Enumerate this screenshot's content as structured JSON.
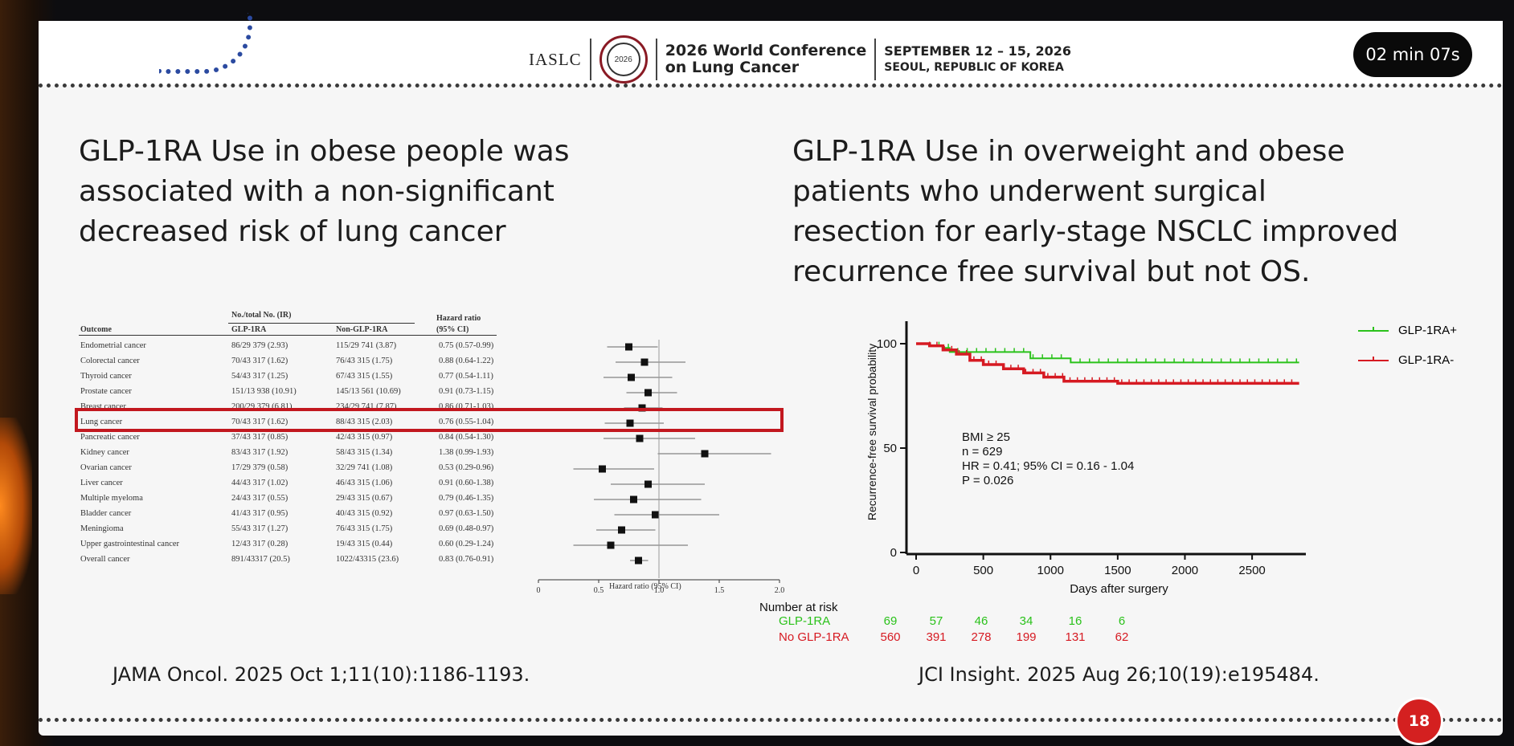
{
  "header": {
    "org": "IASLC",
    "seal_text": "2026",
    "conference_line1": "2026 World Conference",
    "conference_line2": "on Lung Cancer",
    "dates": "SEPTEMBER 12 – 15, 2026",
    "location": "SEOUL, REPUBLIC OF KOREA",
    "timer": "02 min 07s"
  },
  "left": {
    "heading_lines": [
      "GLP-1RA Use in obese people was",
      "associated with a non-significant",
      "decreased risk of lung cancer"
    ],
    "reference": "JAMA Oncol. 2025 Oct 1;11(10):1186-1193."
  },
  "right": {
    "heading_lines": [
      "GLP-1RA Use in overweight and obese",
      "patients who underwent surgical",
      "resection for early-stage NSCLC improved",
      "recurrence free survival but not OS."
    ],
    "reference": "JCI Insight. 2025 Aug 26;10(19):e195484."
  },
  "page_number": "18",
  "colors": {
    "green": "#2bc21b",
    "red": "#d61a22",
    "highlight": "#c2181f",
    "dark": "#1c1c1c"
  },
  "forest": {
    "group_header": "No./total No. (IR)",
    "col_outcome": "Outcome",
    "col_glp": "GLP-1RA",
    "col_nonglp": "Non-GLP-1RA",
    "col_hr_line1": "Hazard ratio",
    "col_hr_line2": "(95% CI)",
    "xlabel": "Hazard ratio (95% CI)",
    "xticks": [
      "0",
      "0.5",
      "1.0",
      "1.5",
      "2.0"
    ]
  },
  "chart_data": [
    {
      "type": "forest",
      "xlabel": "Hazard ratio (95% CI)",
      "xlim": [
        0,
        2.0
      ],
      "rows": [
        {
          "outcome": "Endometrial cancer",
          "glp": "86/29 379 (2.93)",
          "nonglp": "115/29 741 (3.87)",
          "hr_text": "0.75 (0.57-0.99)",
          "hr": 0.75,
          "lo": 0.57,
          "hi": 0.99
        },
        {
          "outcome": "Colorectal cancer",
          "glp": "70/43 317 (1.62)",
          "nonglp": "76/43 315 (1.75)",
          "hr_text": "0.88 (0.64-1.22)",
          "hr": 0.88,
          "lo": 0.64,
          "hi": 1.22
        },
        {
          "outcome": "Thyroid cancer",
          "glp": "54/43 317 (1.25)",
          "nonglp": "67/43 315 (1.55)",
          "hr_text": "0.77 (0.54-1.11)",
          "hr": 0.77,
          "lo": 0.54,
          "hi": 1.11
        },
        {
          "outcome": "Prostate cancer",
          "glp": "151/13 938 (10.91)",
          "nonglp": "145/13 561 (10.69)",
          "hr_text": "0.91 (0.73-1.15)",
          "hr": 0.91,
          "lo": 0.73,
          "hi": 1.15
        },
        {
          "outcome": "Breast cancer",
          "glp": "200/29 379 (6.81)",
          "nonglp": "234/29 741 (7.87)",
          "hr_text": "0.86 (0.71-1.03)",
          "hr": 0.86,
          "lo": 0.71,
          "hi": 1.03
        },
        {
          "outcome": "Lung cancer",
          "glp": "70/43 317 (1.62)",
          "nonglp": "88/43 315 (2.03)",
          "hr_text": "0.76 (0.55-1.04)",
          "hr": 0.76,
          "lo": 0.55,
          "hi": 1.04
        },
        {
          "outcome": "Pancreatic cancer",
          "glp": "37/43 317 (0.85)",
          "nonglp": "42/43 315 (0.97)",
          "hr_text": "0.84 (0.54-1.30)",
          "hr": 0.84,
          "lo": 0.54,
          "hi": 1.3
        },
        {
          "outcome": "Kidney cancer",
          "glp": "83/43 317 (1.92)",
          "nonglp": "58/43 315 (1.34)",
          "hr_text": "1.38 (0.99-1.93)",
          "hr": 1.38,
          "lo": 0.99,
          "hi": 1.93
        },
        {
          "outcome": "Ovarian cancer",
          "glp": "17/29 379 (0.58)",
          "nonglp": "32/29 741 (1.08)",
          "hr_text": "0.53 (0.29-0.96)",
          "hr": 0.53,
          "lo": 0.29,
          "hi": 0.96
        },
        {
          "outcome": "Liver cancer",
          "glp": "44/43 317 (1.02)",
          "nonglp": "46/43 315 (1.06)",
          "hr_text": "0.91 (0.60-1.38)",
          "hr": 0.91,
          "lo": 0.6,
          "hi": 1.38
        },
        {
          "outcome": "Multiple myeloma",
          "glp": "24/43 317 (0.55)",
          "nonglp": "29/43 315 (0.67)",
          "hr_text": "0.79 (0.46-1.35)",
          "hr": 0.79,
          "lo": 0.46,
          "hi": 1.35
        },
        {
          "outcome": "Bladder cancer",
          "glp": "41/43 317 (0.95)",
          "nonglp": "40/43 315 (0.92)",
          "hr_text": "0.97 (0.63-1.50)",
          "hr": 0.97,
          "lo": 0.63,
          "hi": 1.5
        },
        {
          "outcome": "Meningioma",
          "glp": "55/43 317 (1.27)",
          "nonglp": "76/43 315 (1.75)",
          "hr_text": "0.69 (0.48-0.97)",
          "hr": 0.69,
          "lo": 0.48,
          "hi": 0.97
        },
        {
          "outcome": "Upper gastrointestinal cancer",
          "glp": "12/43 317 (0.28)",
          "nonglp": "19/43 315 (0.44)",
          "hr_text": "0.60 (0.29-1.24)",
          "hr": 0.6,
          "lo": 0.29,
          "hi": 1.24
        },
        {
          "outcome": "Overall cancer",
          "glp": "891/43317 (20.5)",
          "nonglp": "1022/43315 (23.6)",
          "hr_text": "0.83 (0.76-0.91)",
          "hr": 0.83,
          "lo": 0.76,
          "hi": 0.91
        }
      ]
    },
    {
      "type": "line",
      "title": "",
      "xlabel": "Days after surgery",
      "ylabel": "Recurrence-free survival probability",
      "xlim": [
        0,
        2900
      ],
      "ylim": [
        0,
        100
      ],
      "xticks": [
        0,
        500,
        1000,
        1500,
        2000,
        2500
      ],
      "yticks": [
        0,
        50,
        100
      ],
      "legend_position": "top-right",
      "annotation": [
        "BMI ≥ 25",
        "n = 629",
        "HR = 0.41; 95% CI = 0.16 - 1.04",
        "P = 0.026"
      ],
      "series": [
        {
          "name": "GLP-1RA+",
          "color": "#2bc21b",
          "x": [
            0,
            100,
            200,
            250,
            500,
            800,
            850,
            1100,
            1150,
            2850
          ],
          "y": [
            100,
            99,
            98,
            96,
            96,
            96,
            93,
            93,
            91,
            91
          ]
        },
        {
          "name": "GLP-1RA-",
          "color": "#d61a22",
          "x": [
            0,
            100,
            200,
            300,
            400,
            500,
            650,
            800,
            950,
            1100,
            1300,
            1500,
            2850
          ],
          "y": [
            100,
            99,
            97,
            95,
            92,
            90,
            88,
            86,
            84,
            82,
            82,
            81,
            81
          ]
        }
      ],
      "risk_table": {
        "title": "Number at risk",
        "rows": [
          {
            "label": "GLP-1RA",
            "color": "#2bc21b",
            "values": [
              "69",
              "57",
              "46",
              "34",
              "16",
              "6"
            ]
          },
          {
            "label": "No GLP-1RA",
            "color": "#d61a22",
            "values": [
              "560",
              "391",
              "278",
              "199",
              "131",
              "62"
            ]
          }
        ]
      }
    }
  ]
}
